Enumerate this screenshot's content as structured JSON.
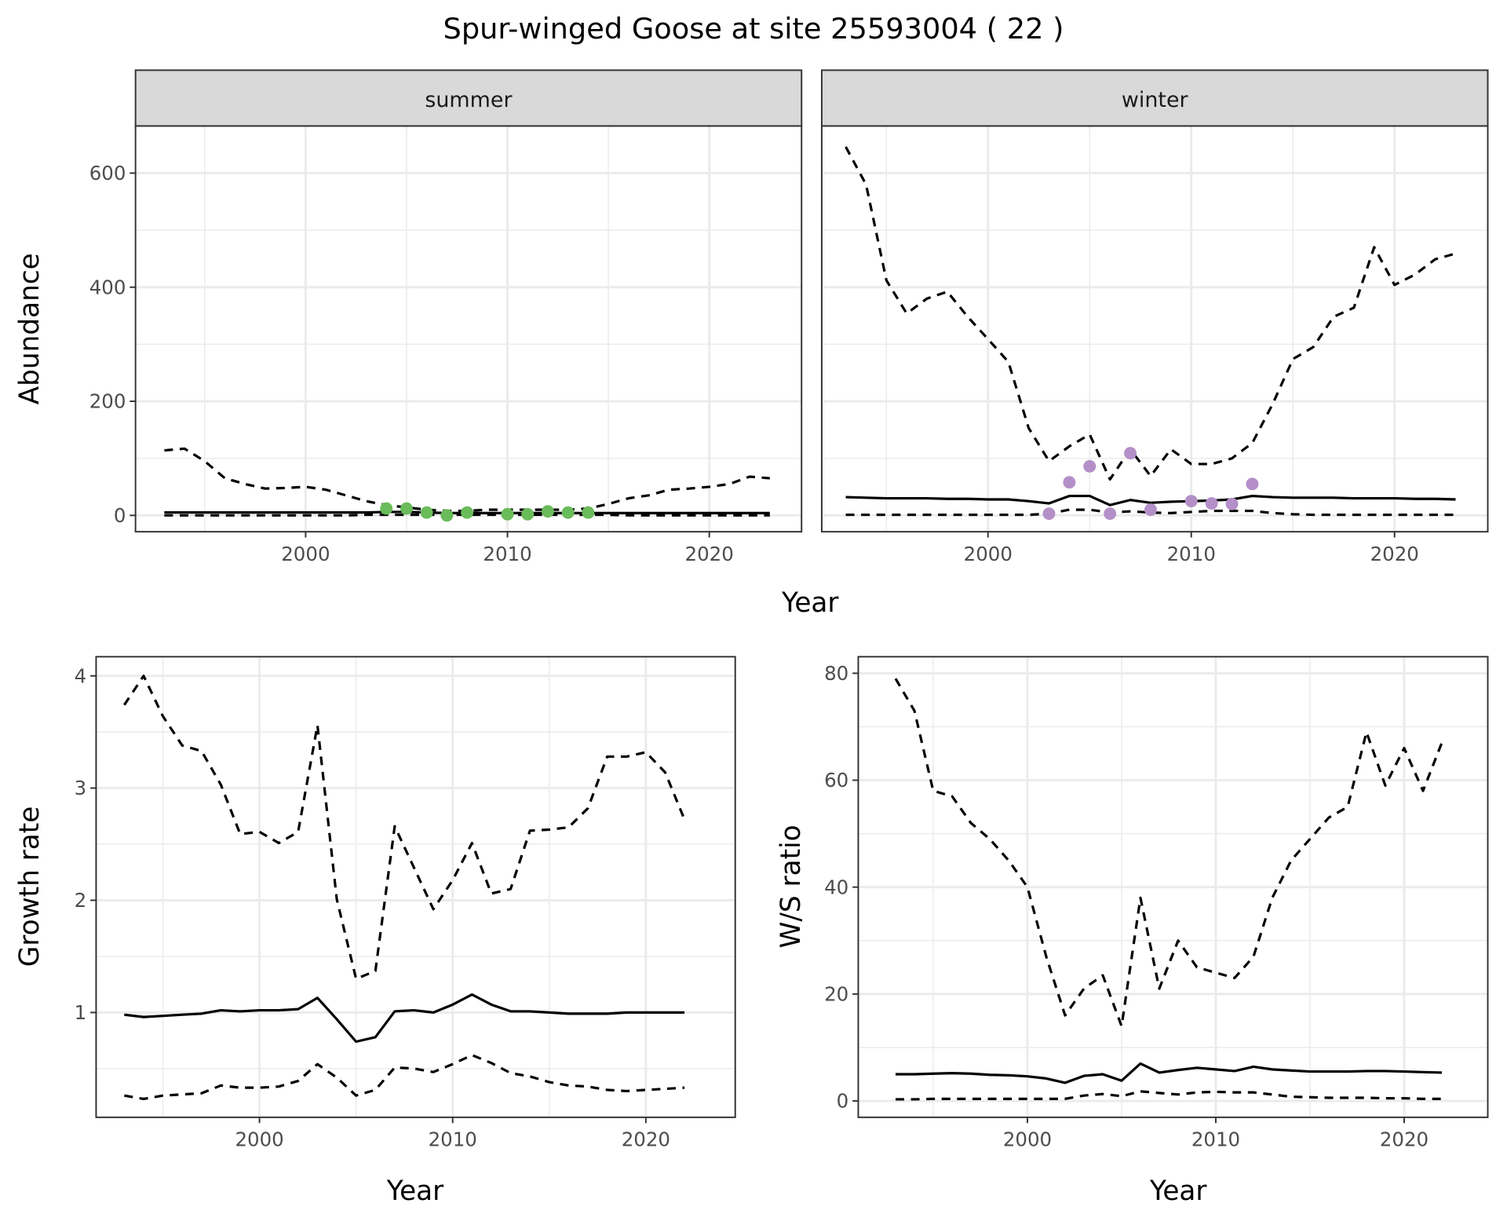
{
  "title": "Spur-winged Goose at site 25593004 ( 22 )",
  "colors": {
    "summer_points": "#6abb5a",
    "winter_points": "#b48fc8",
    "grid": "#ebebeb",
    "strip": "#d9d9d9"
  },
  "chart_data": [
    {
      "type": "line",
      "panel": "summer",
      "strip_label": "summer",
      "xlabel": "Year",
      "ylabel": "Abundance",
      "xticks": [
        "2000",
        "2010",
        "2020"
      ],
      "yticks": [
        "0",
        "200",
        "400",
        "600"
      ],
      "years": [
        1993,
        1994,
        1995,
        1996,
        1997,
        1998,
        1999,
        2000,
        2001,
        2002,
        2003,
        2004,
        2005,
        2006,
        2007,
        2008,
        2009,
        2010,
        2011,
        2012,
        2013,
        2014,
        2015,
        2016,
        2017,
        2018,
        2019,
        2020,
        2021,
        2022,
        2023
      ],
      "series": [
        {
          "name": "upper",
          "style": "dashed",
          "values": [
            114,
            117,
            95,
            65,
            55,
            47,
            48,
            50,
            45,
            35,
            25,
            18,
            14,
            10,
            8,
            8,
            10,
            10,
            10,
            10,
            10,
            12,
            20,
            30,
            35,
            45,
            47,
            50,
            55,
            68,
            65
          ]
        },
        {
          "name": "mean",
          "style": "solid",
          "values": [
            5,
            5,
            5,
            5,
            5,
            5,
            5,
            5,
            5,
            5,
            5,
            6,
            6,
            5,
            4,
            4,
            4,
            4,
            4,
            4,
            4,
            4,
            4,
            4,
            4,
            4,
            4,
            4,
            4,
            4,
            4
          ]
        },
        {
          "name": "lower",
          "style": "dashed",
          "values": [
            0,
            0,
            0,
            0,
            0,
            0,
            0,
            0,
            0,
            0,
            1,
            1,
            1,
            1,
            1,
            1,
            1,
            1,
            1,
            1,
            1,
            1,
            1,
            0,
            0,
            0,
            0,
            0,
            0,
            0,
            0
          ]
        }
      ],
      "points": {
        "years": [
          2004,
          2005,
          2006,
          2007,
          2008,
          2010,
          2011,
          2012,
          2013,
          2014
        ],
        "values": [
          12,
          12,
          5,
          0,
          5,
          2,
          2,
          7,
          5,
          5
        ]
      }
    },
    {
      "type": "line",
      "panel": "winter",
      "strip_label": "winter",
      "xlabel": "Year",
      "ylabel": "Abundance",
      "xticks": [
        "2000",
        "2010",
        "2020"
      ],
      "years": [
        1993,
        1994,
        1995,
        1996,
        1997,
        1998,
        1999,
        2000,
        2001,
        2002,
        2003,
        2004,
        2005,
        2006,
        2007,
        2008,
        2009,
        2010,
        2011,
        2012,
        2013,
        2014,
        2015,
        2016,
        2017,
        2018,
        2019,
        2020,
        2021,
        2022,
        2023
      ],
      "series": [
        {
          "name": "upper",
          "style": "dashed",
          "values": [
            646,
            580,
            412,
            354,
            380,
            392,
            348,
            309,
            269,
            153,
            95,
            121,
            142,
            63,
            116,
            69,
            116,
            90,
            90,
            100,
            127,
            195,
            274,
            295,
            348,
            364,
            470,
            404,
            422,
            449,
            459
          ]
        },
        {
          "name": "mean",
          "style": "solid",
          "values": [
            32,
            31,
            30,
            30,
            30,
            29,
            29,
            28,
            28,
            25,
            21,
            34,
            34,
            18,
            27,
            22,
            24,
            25,
            26,
            28,
            34,
            32,
            31,
            31,
            31,
            30,
            30,
            30,
            29,
            29,
            28
          ]
        },
        {
          "name": "lower",
          "style": "dashed",
          "values": [
            1,
            1,
            1,
            1,
            1,
            1,
            1,
            1,
            1,
            1,
            3,
            10,
            10,
            5,
            7,
            5,
            4,
            6,
            8,
            8,
            8,
            4,
            2,
            1,
            1,
            1,
            1,
            1,
            1,
            1,
            1
          ]
        }
      ],
      "points": {
        "years": [
          2003,
          2004,
          2005,
          2006,
          2007,
          2008,
          2010,
          2011,
          2012,
          2013
        ],
        "values": [
          3,
          58,
          86,
          3,
          109,
          10,
          25,
          21,
          20,
          55
        ]
      }
    },
    {
      "type": "line",
      "panel": "growth",
      "xlabel": "Year",
      "ylabel": "Growth rate",
      "xticks": [
        "2000",
        "2010",
        "2020"
      ],
      "yticks": [
        "1",
        "2",
        "3",
        "4"
      ],
      "years": [
        1993,
        1994,
        1995,
        1996,
        1997,
        1998,
        1999,
        2000,
        2001,
        2002,
        2003,
        2004,
        2005,
        2006,
        2007,
        2008,
        2009,
        2010,
        2011,
        2012,
        2013,
        2014,
        2015,
        2016,
        2017,
        2018,
        2019,
        2020,
        2021,
        2022
      ],
      "series": [
        {
          "name": "upper",
          "style": "dashed",
          "values": [
            3.74,
            4.0,
            3.64,
            3.38,
            3.33,
            3.03,
            2.59,
            2.61,
            2.51,
            2.61,
            3.56,
            2.01,
            1.3,
            1.37,
            2.66,
            2.29,
            1.92,
            2.18,
            2.51,
            2.06,
            2.1,
            2.62,
            2.63,
            2.65,
            2.82,
            3.28,
            3.28,
            3.32,
            3.14,
            2.72
          ]
        },
        {
          "name": "mean",
          "style": "solid",
          "values": [
            0.98,
            0.96,
            0.97,
            0.98,
            0.99,
            1.02,
            1.01,
            1.02,
            1.02,
            1.03,
            1.13,
            0.94,
            0.74,
            0.78,
            1.01,
            1.02,
            1.0,
            1.07,
            1.16,
            1.07,
            1.01,
            1.01,
            1.0,
            0.99,
            0.99,
            0.99,
            1.0,
            1.0,
            1.0,
            1.0
          ]
        },
        {
          "name": "lower",
          "style": "dashed",
          "values": [
            0.26,
            0.23,
            0.26,
            0.27,
            0.28,
            0.35,
            0.33,
            0.33,
            0.34,
            0.39,
            0.54,
            0.42,
            0.26,
            0.31,
            0.51,
            0.5,
            0.47,
            0.54,
            0.62,
            0.55,
            0.46,
            0.43,
            0.38,
            0.35,
            0.34,
            0.31,
            0.3,
            0.31,
            0.32,
            0.33
          ]
        }
      ]
    },
    {
      "type": "line",
      "panel": "ratio",
      "xlabel": "Year",
      "ylabel": "W/S ratio",
      "xticks": [
        "2000",
        "2010",
        "2020"
      ],
      "yticks": [
        "0",
        "20",
        "40",
        "60",
        "80"
      ],
      "years": [
        1993,
        1994,
        1995,
        1996,
        1997,
        1998,
        1999,
        2000,
        2001,
        2002,
        2003,
        2004,
        2005,
        2006,
        2007,
        2008,
        2009,
        2010,
        2011,
        2012,
        2013,
        2014,
        2015,
        2016,
        2017,
        2018,
        2019,
        2020,
        2021,
        2022
      ],
      "series": [
        {
          "name": "upper",
          "style": "dashed",
          "values": [
            79,
            73,
            58,
            57,
            52,
            49,
            45,
            40,
            27,
            16,
            21,
            23.5,
            14,
            38,
            21,
            30,
            25,
            24,
            23,
            27,
            38,
            45,
            49,
            53,
            55,
            69,
            59,
            66,
            58,
            67
          ]
        },
        {
          "name": "mean",
          "style": "solid",
          "values": [
            5,
            5,
            5.1,
            5.2,
            5.1,
            4.9,
            4.8,
            4.6,
            4.2,
            3.4,
            4.7,
            5.0,
            3.8,
            7.0,
            5.3,
            5.8,
            6.2,
            5.9,
            5.6,
            6.4,
            5.9,
            5.7,
            5.5,
            5.5,
            5.5,
            5.6,
            5.6,
            5.5,
            5.4,
            5.3
          ]
        },
        {
          "name": "lower",
          "style": "dashed",
          "values": [
            0.3,
            0.3,
            0.4,
            0.4,
            0.4,
            0.4,
            0.4,
            0.4,
            0.4,
            0.4,
            1.0,
            1.3,
            0.9,
            1.8,
            1.5,
            1.2,
            1.6,
            1.7,
            1.6,
            1.6,
            1.2,
            0.8,
            0.7,
            0.6,
            0.6,
            0.6,
            0.5,
            0.5,
            0.4,
            0.4
          ]
        }
      ]
    }
  ]
}
